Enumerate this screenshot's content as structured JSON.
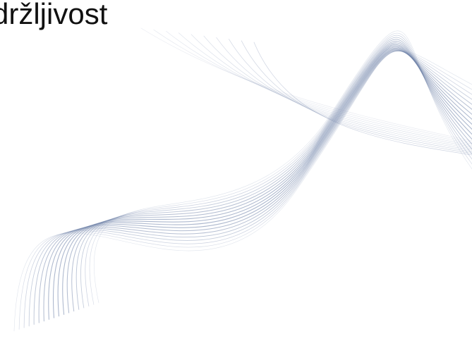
{
  "slide": {
    "title": "držljivost"
  },
  "decoration": {
    "wave_color": "#6f82a8",
    "background_color": "#ffffff",
    "text_color": "#111111"
  }
}
